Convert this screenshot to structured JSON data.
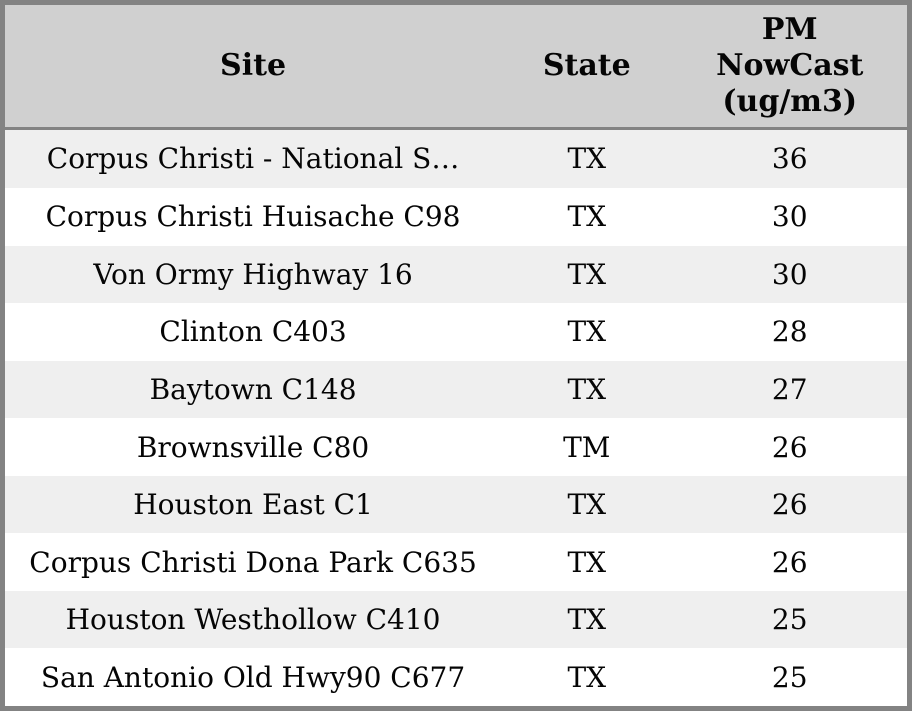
{
  "table": {
    "columns": [
      {
        "key": "site",
        "label": "Site"
      },
      {
        "key": "state",
        "label": "State"
      },
      {
        "key": "pm",
        "label": "PM NowCast (ug/m3)"
      }
    ],
    "rows": [
      {
        "site": "Corpus Christi - National S…",
        "state": "TX",
        "pm": "36"
      },
      {
        "site": "Corpus Christi Huisache C98",
        "state": "TX",
        "pm": "30"
      },
      {
        "site": "Von Ormy Highway 16",
        "state": "TX",
        "pm": "30"
      },
      {
        "site": "Clinton C403",
        "state": "TX",
        "pm": "28"
      },
      {
        "site": "Baytown C148",
        "state": "TX",
        "pm": "27"
      },
      {
        "site": "Brownsville C80",
        "state": "TM",
        "pm": "26"
      },
      {
        "site": "Houston East C1",
        "state": "TX",
        "pm": "26"
      },
      {
        "site": "Corpus Christi Dona Park C635",
        "state": "TX",
        "pm": "26"
      },
      {
        "site": "Houston Westhollow C410",
        "state": "TX",
        "pm": "25"
      },
      {
        "site": "San Antonio Old Hwy90 C677",
        "state": "TX",
        "pm": "25"
      }
    ]
  },
  "chart_data": {
    "type": "table",
    "columns": [
      "Site",
      "State",
      "PM NowCast (ug/m3)"
    ],
    "rows": [
      [
        "Corpus Christi - National S…",
        "TX",
        36
      ],
      [
        "Corpus Christi Huisache C98",
        "TX",
        30
      ],
      [
        "Von Ormy Highway 16",
        "TX",
        30
      ],
      [
        "Clinton C403",
        "TX",
        28
      ],
      [
        "Baytown C148",
        "TX",
        27
      ],
      [
        "Brownsville C80",
        "TM",
        26
      ],
      [
        "Houston East C1",
        "TX",
        26
      ],
      [
        "Corpus Christi Dona Park C635",
        "TX",
        26
      ],
      [
        "Houston Westhollow C410",
        "TX",
        25
      ],
      [
        "San Antonio Old Hwy90 C677",
        "TX",
        25
      ]
    ]
  },
  "colors": {
    "frame_border": "#838383",
    "header_bg": "#d0d0d0",
    "row_alt_bg": "#efefef",
    "row_bg": "#ffffff",
    "text": "#050505"
  }
}
